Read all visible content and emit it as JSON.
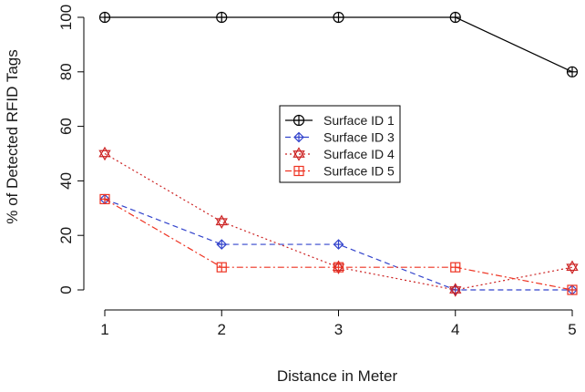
{
  "chart_data": {
    "type": "line",
    "title": "",
    "xlabel": "Distance in Meter",
    "ylabel": "% of Detected RFID Tags",
    "x": [
      1,
      2,
      3,
      4,
      5
    ],
    "xlim": [
      1,
      5
    ],
    "ylim": [
      0,
      100
    ],
    "xticks": [
      "1",
      "2",
      "3",
      "4",
      "5"
    ],
    "yticks": [
      "0",
      "20",
      "40",
      "60",
      "80",
      "100"
    ],
    "grid": false,
    "legend_position": "center",
    "series": [
      {
        "name": "Surface ID 1",
        "values": [
          100,
          100,
          100,
          100,
          80
        ],
        "color": "#000000",
        "line_style": "solid",
        "marker": "circle-plus"
      },
      {
        "name": "Surface ID 3",
        "values": [
          33.3,
          16.7,
          16.7,
          0,
          0
        ],
        "color": "#3344cc",
        "line_style": "dashed",
        "marker": "diamond-plus"
      },
      {
        "name": "Surface ID 4",
        "values": [
          50,
          25,
          8.3,
          0,
          8.3
        ],
        "color": "#cc2222",
        "line_style": "dotted",
        "marker": "star-of-david"
      },
      {
        "name": "Surface ID 5",
        "values": [
          33.3,
          8.3,
          8.3,
          8.3,
          0
        ],
        "color": "#ee3322",
        "line_style": "dashdot",
        "marker": "square-plus"
      }
    ]
  }
}
